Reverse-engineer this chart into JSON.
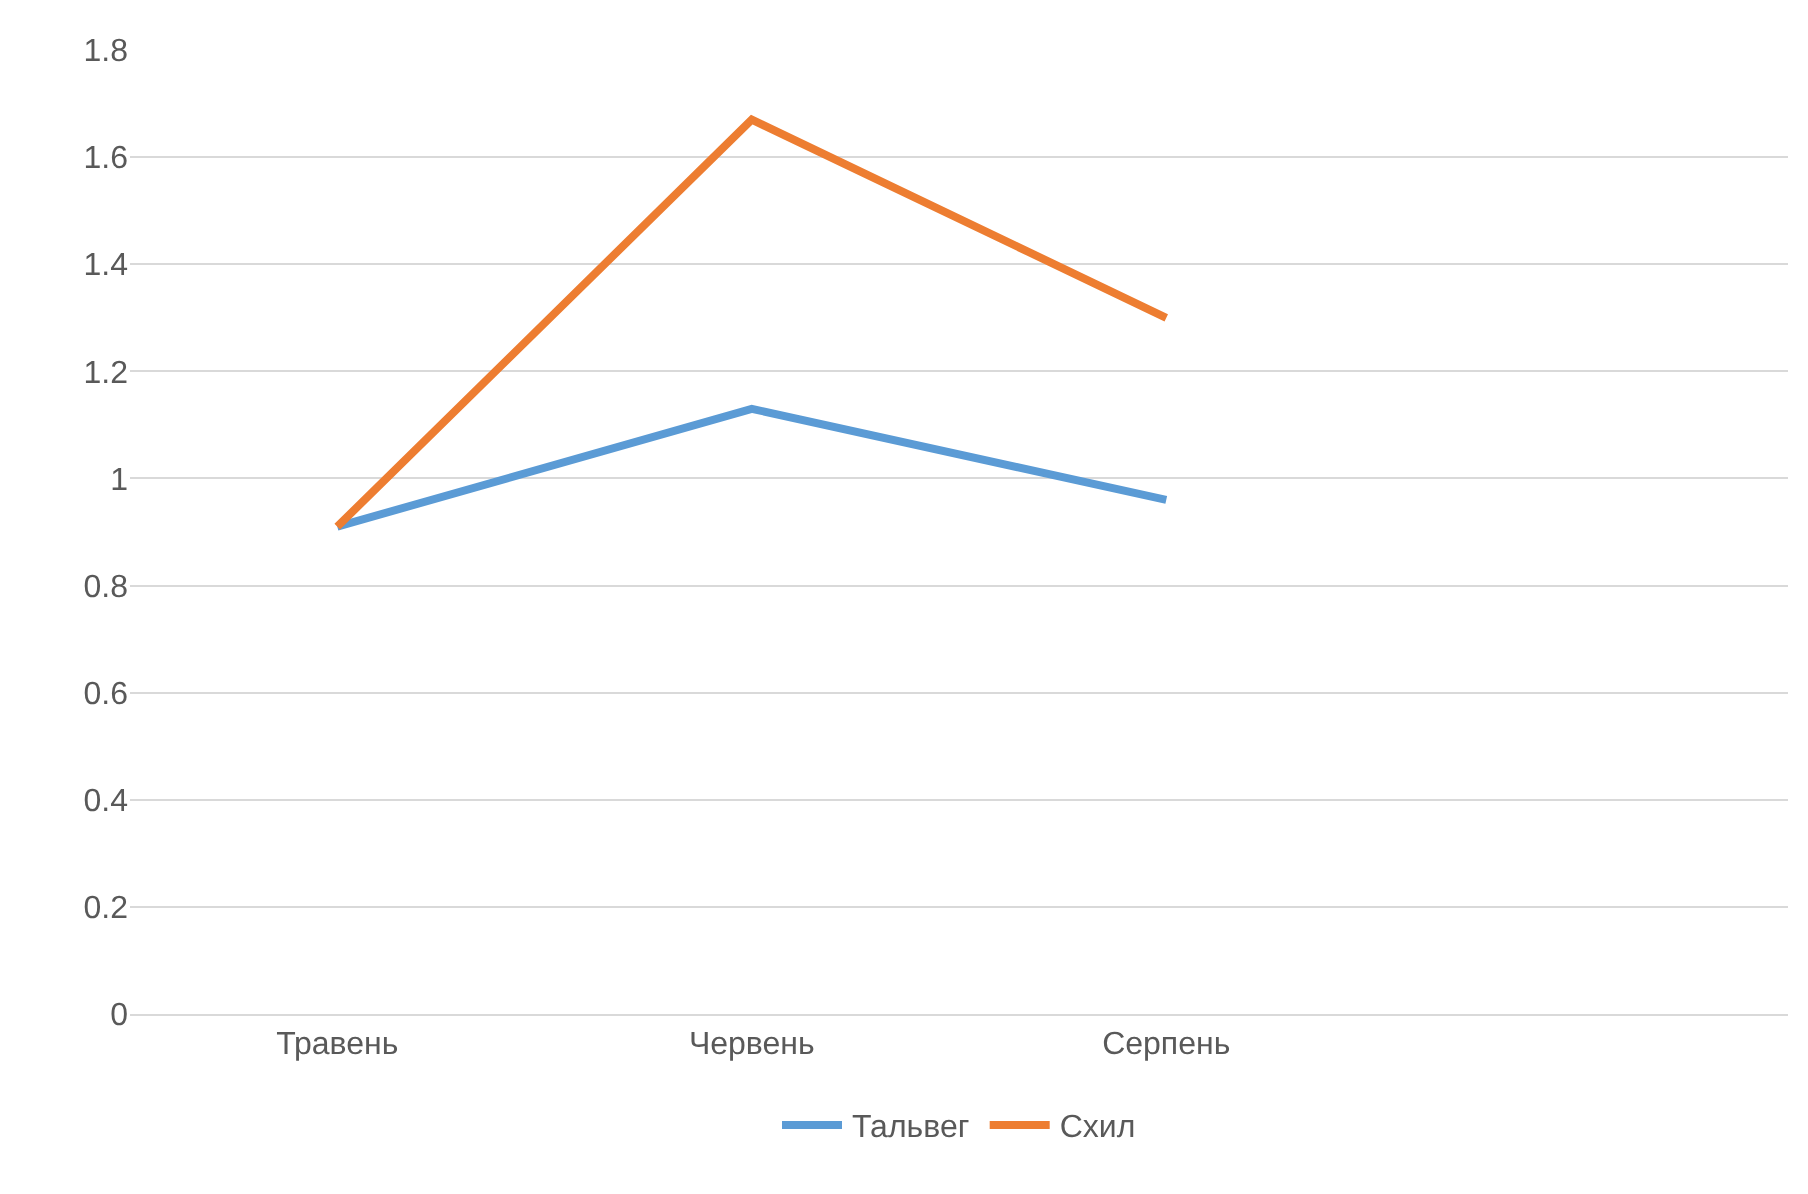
{
  "chart_data": {
    "type": "line",
    "categories": [
      "Травень",
      "Червень",
      "Серпень",
      null
    ],
    "series": [
      {
        "name": "Тальвег",
        "color": "#5b9bd5",
        "values": [
          0.91,
          1.13,
          0.96,
          null
        ]
      },
      {
        "name": "Схил",
        "color": "#ed7d31",
        "values": [
          0.91,
          1.67,
          1.3,
          null
        ]
      }
    ],
    "ylim": [
      0,
      1.8
    ],
    "yticks": [
      0,
      0.2,
      0.4,
      0.6,
      0.8,
      1,
      1.2,
      1.4,
      1.6,
      1.8
    ],
    "grid": "y",
    "legend": "bottom",
    "marker": "none",
    "line_style": "solid"
  }
}
